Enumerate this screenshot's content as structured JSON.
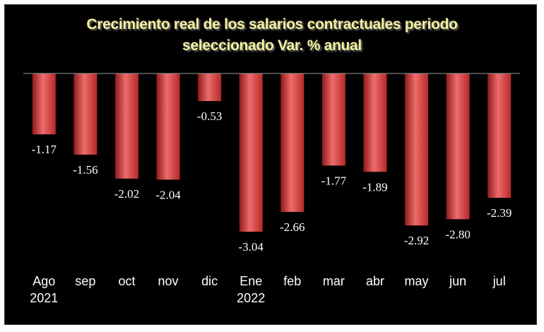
{
  "chart_data": {
    "type": "bar",
    "title": "Crecimiento real de los salarios contractuales periodo seleccionado Var. % anual",
    "title_lines": [
      "Crecimiento real de los salarios contractuales periodo",
      "seleccionado Var. % anual"
    ],
    "categories": [
      [
        "Ago",
        "2021"
      ],
      [
        "sep"
      ],
      [
        "oct"
      ],
      [
        "nov"
      ],
      [
        "dic"
      ],
      [
        "Ene",
        "2022"
      ],
      [
        "feb"
      ],
      [
        "mar"
      ],
      [
        "abr"
      ],
      [
        "may"
      ],
      [
        "jun"
      ],
      [
        "jul"
      ]
    ],
    "values": [
      -1.17,
      -1.56,
      -2.02,
      -2.04,
      -0.53,
      -3.04,
      -2.66,
      -1.77,
      -1.89,
      -2.92,
      -2.8,
      -2.39
    ],
    "value_labels": [
      "-1.17",
      "-1.56",
      "-2.02",
      "-2.04",
      "-0.53",
      "-3.04",
      "-2.66",
      "-1.77",
      "-1.89",
      "-2.92",
      "-2.80",
      "-2.39"
    ],
    "ylim": [
      -3.04,
      0
    ],
    "grid": false,
    "legend": "none",
    "colors": {
      "background": "#000000",
      "bar_dark": "#8e1a1a",
      "bar_mid": "#d63a3a",
      "bar_light": "#ef6c6c",
      "title": "#f5f2a0",
      "text": "#ffffff",
      "axis": "#9a9a9a"
    }
  }
}
